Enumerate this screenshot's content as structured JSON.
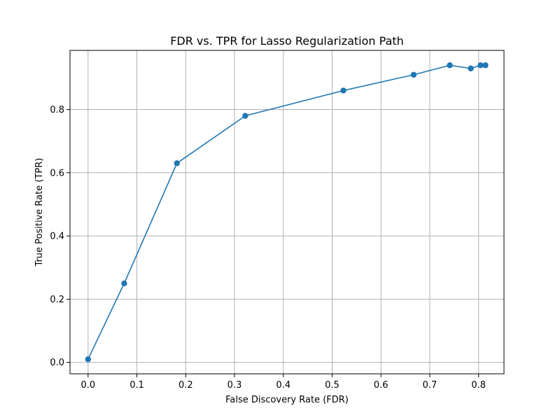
{
  "chart_data": {
    "type": "line",
    "title": "FDR vs. TPR for Lasso Regularization Path",
    "xlabel": "False Discovery Rate (FDR)",
    "ylabel": "True Positive Rate (TPR)",
    "xlim": [
      -0.037,
      0.852
    ],
    "ylim": [
      -0.036,
      0.987
    ],
    "xticks": [
      0.0,
      0.1,
      0.2,
      0.3,
      0.4,
      0.5,
      0.6,
      0.7,
      0.8
    ],
    "xtick_labels": [
      "0.0",
      "0.1",
      "0.2",
      "0.3",
      "0.4",
      "0.5",
      "0.6",
      "0.7",
      "0.8"
    ],
    "yticks": [
      0.0,
      0.2,
      0.4,
      0.6,
      0.8
    ],
    "ytick_labels": [
      "0.0",
      "0.2",
      "0.4",
      "0.6",
      "0.8"
    ],
    "grid": true,
    "series": [
      {
        "x": [
          0.0,
          0.074,
          0.182,
          0.322,
          0.523,
          0.667,
          0.741,
          0.784,
          0.804,
          0.814
        ],
        "y": [
          0.01,
          0.25,
          0.63,
          0.78,
          0.86,
          0.91,
          0.94,
          0.93,
          0.94,
          0.94
        ],
        "color": "#1f77b4",
        "marker": "circle"
      }
    ]
  }
}
